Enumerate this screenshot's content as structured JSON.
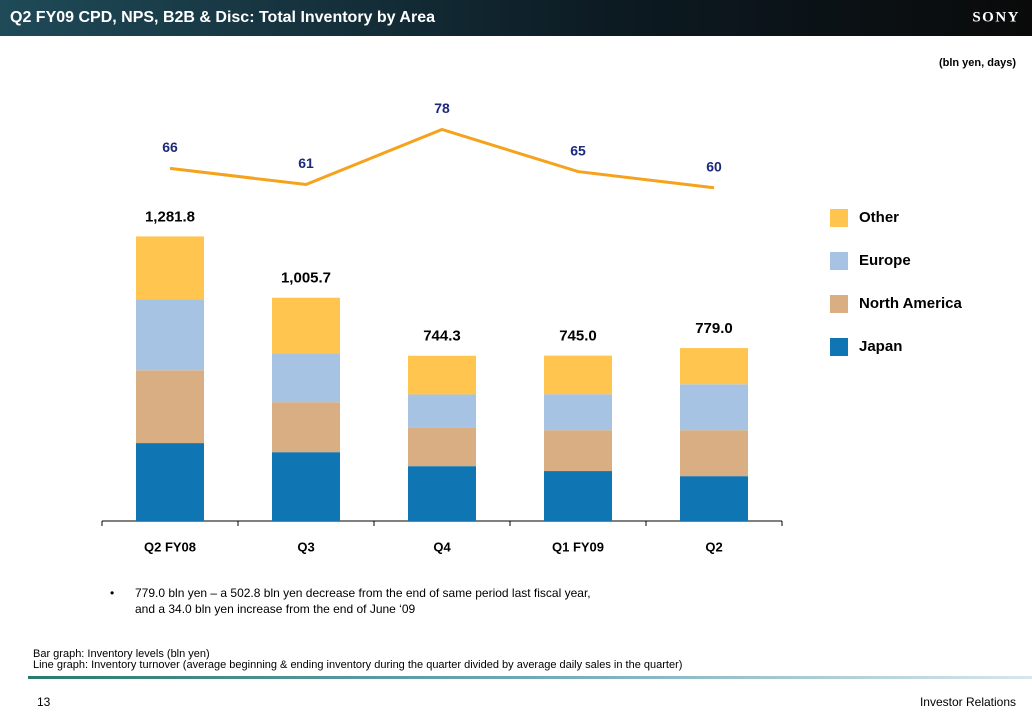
{
  "header": {
    "title": "Q2 FY09 CPD, NPS, B2B & Disc: Total Inventory by Area",
    "logo": "SONY"
  },
  "chart_data": {
    "type": "bar",
    "stacked": true,
    "unit_note": "(bln yen, days)",
    "categories": [
      "Q2 FY08",
      "Q3",
      "Q4",
      "Q1 FY09",
      "Q2"
    ],
    "series": [
      {
        "name": "Japan",
        "color": "#0f75b3",
        "values": [
          351,
          310,
          247,
          225,
          202
        ]
      },
      {
        "name": "North America",
        "color": "#d9ae82",
        "values": [
          328,
          225,
          175,
          184,
          207
        ]
      },
      {
        "name": "Europe",
        "color": "#a7c3e3",
        "values": [
          319,
          220,
          148,
          162,
          207
        ]
      },
      {
        "name": "Other",
        "color": "#ffc54e",
        "values": [
          283.8,
          250.7,
          174.3,
          174,
          163
        ]
      },
      {
        "name": "Inventory turnover",
        "type": "line",
        "axis": "y2",
        "color": "#f5a21c",
        "label_color": "#1b2a7c",
        "values": [
          66,
          61,
          78,
          65,
          60
        ]
      }
    ],
    "totals": [
      1281.8,
      1005.7,
      744.3,
      745.0,
      779.0
    ],
    "total_labels": [
      "1,281.8",
      "1,005.7",
      "744.3",
      "745.0",
      "779.0"
    ],
    "ylim": [
      0,
      1500
    ],
    "y2lim": [
      0,
      80
    ],
    "legend": "right"
  },
  "notes": {
    "bullet": [
      "779.0 bln yen – a 502.8 bln yen decrease from the end of same period last fiscal year,",
      "and a 34.0 bln yen increase from the end of June ‘09"
    ],
    "footnotes": [
      "Bar graph: Inventory levels (bln yen)",
      "Line graph: Inventory turnover (average beginning & ending inventory during the quarter divided by average daily sales in the quarter)"
    ]
  },
  "footer": {
    "page": "13",
    "text": "Investor Relations"
  }
}
